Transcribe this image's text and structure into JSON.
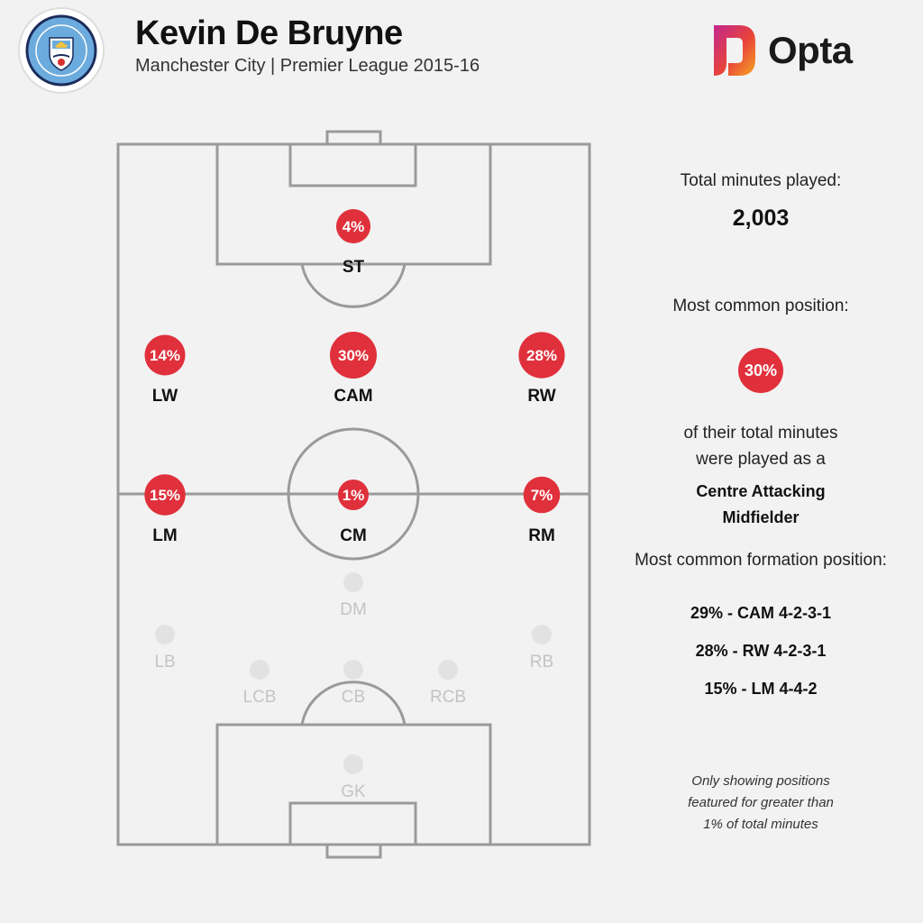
{
  "header": {
    "player_name": "Kevin De Bruyne",
    "subtitle": "Manchester City | Premier League 2015-16",
    "club_badge_icon": "manchester-city-crest-icon",
    "brand_icon": "opta-logo-icon",
    "brand_name": "Opta"
  },
  "colors": {
    "highlight": "#e0303b",
    "background": "#f2f2f2",
    "pitch_lines": "#9a9a9a",
    "inactive_dot": "#e2e2e2"
  },
  "positions": [
    {
      "code": "ST",
      "pct_label": "4%",
      "share": 0.04,
      "active": true
    },
    {
      "code": "LW",
      "pct_label": "14%",
      "share": 0.14,
      "active": true
    },
    {
      "code": "CAM",
      "pct_label": "30%",
      "share": 0.3,
      "active": true
    },
    {
      "code": "RW",
      "pct_label": "28%",
      "share": 0.28,
      "active": true
    },
    {
      "code": "LM",
      "pct_label": "15%",
      "share": 0.15,
      "active": true
    },
    {
      "code": "CM",
      "pct_label": "1%",
      "share": 0.01,
      "active": true
    },
    {
      "code": "RM",
      "pct_label": "7%",
      "share": 0.07,
      "active": true
    },
    {
      "code": "DM",
      "pct_label": "",
      "share": 0,
      "active": false
    },
    {
      "code": "LB",
      "pct_label": "",
      "share": 0,
      "active": false
    },
    {
      "code": "RB",
      "pct_label": "",
      "share": 0,
      "active": false
    },
    {
      "code": "LCB",
      "pct_label": "",
      "share": 0,
      "active": false
    },
    {
      "code": "CB",
      "pct_label": "",
      "share": 0,
      "active": false
    },
    {
      "code": "RCB",
      "pct_label": "",
      "share": 0,
      "active": false
    },
    {
      "code": "GK",
      "pct_label": "",
      "share": 0,
      "active": false
    }
  ],
  "summary": {
    "minutes_label": "Total minutes played:",
    "minutes_value": "2,003",
    "common_position_label": "Most common position:",
    "common_position_pct": "30%",
    "common_position_text_1": "of their total minutes",
    "common_position_text_2": "were played as a",
    "common_position_name_1": "Centre Attacking",
    "common_position_name_2": "Midfielder",
    "formation_label": "Most common formation position:",
    "formations": [
      "29% - CAM 4-2-3-1",
      "28% - RW 4-2-3-1",
      "15% - LM 4-4-2"
    ],
    "note_1": "Only showing positions",
    "note_2": "featured for greater than",
    "note_3": "1% of total minutes"
  }
}
